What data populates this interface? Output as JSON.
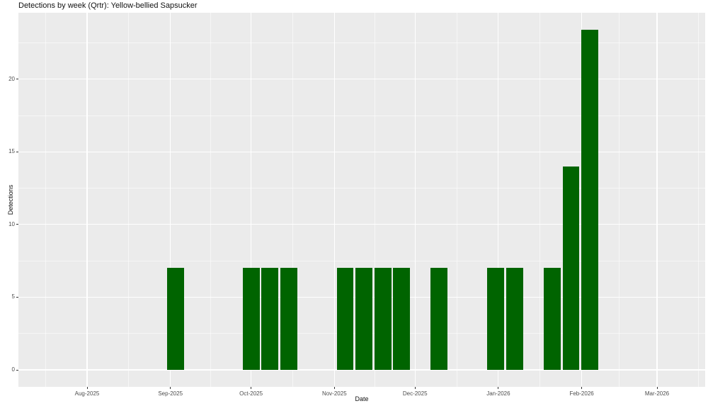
{
  "chart_data": {
    "type": "bar",
    "title": "Detections by week (Qrtr): Yellow-bellied Sapsucker",
    "xlabel": "Date",
    "ylabel": "Detections",
    "categories": [
      "2025-09-03",
      "2025-10-01",
      "2025-10-08",
      "2025-10-15",
      "2025-11-05",
      "2025-11-12",
      "2025-11-19",
      "2025-11-26",
      "2025-12-10",
      "2025-12-31",
      "2026-01-07",
      "2026-01-21",
      "2026-01-28",
      "2026-02-04"
    ],
    "values": [
      7,
      7,
      7,
      7,
      7,
      7,
      7,
      7,
      7,
      7,
      7,
      7,
      14,
      23.4
    ],
    "bin_width_days": 7,
    "bar_relative_width": 0.9,
    "x_ticks": [
      {
        "label": "Aug-2025",
        "date": "2025-08-01"
      },
      {
        "label": "Sep-2025",
        "date": "2025-09-01"
      },
      {
        "label": "Oct-2025",
        "date": "2025-10-01"
      },
      {
        "label": "Nov-2025",
        "date": "2025-11-01"
      },
      {
        "label": "Dec-2025",
        "date": "2025-12-01"
      },
      {
        "label": "Jan-2026",
        "date": "2026-01-01"
      },
      {
        "label": "Feb-2026",
        "date": "2026-02-01"
      },
      {
        "label": "Mar-2026",
        "date": "2026-03-01"
      }
    ],
    "x_minor_dates": [
      "2025-07-16T12:00:00",
      "2025-08-16T12:00:00",
      "2025-09-16T00:00:00",
      "2025-10-16T12:00:00",
      "2025-11-16T00:00:00",
      "2025-12-16T12:00:00",
      "2026-01-16T12:00:00",
      "2026-02-15T00:00:00",
      "2026-03-16T12:00:00"
    ],
    "y_ticks": [
      0,
      5,
      10,
      15,
      20
    ],
    "y_minor": [
      2.5,
      7.5,
      12.5,
      17.5,
      22.5
    ],
    "ylim": [
      -1.17,
      24.57
    ],
    "grid": true,
    "legend": "none",
    "colors": {
      "bar": "#006400",
      "panel_bg": "#EBEBEB",
      "grid_major": "#FFFFFF",
      "grid_minor": "#FFFFFF",
      "tick_label": "#4D4D4D",
      "tick_mark": "#333333",
      "text": "#111111"
    }
  }
}
